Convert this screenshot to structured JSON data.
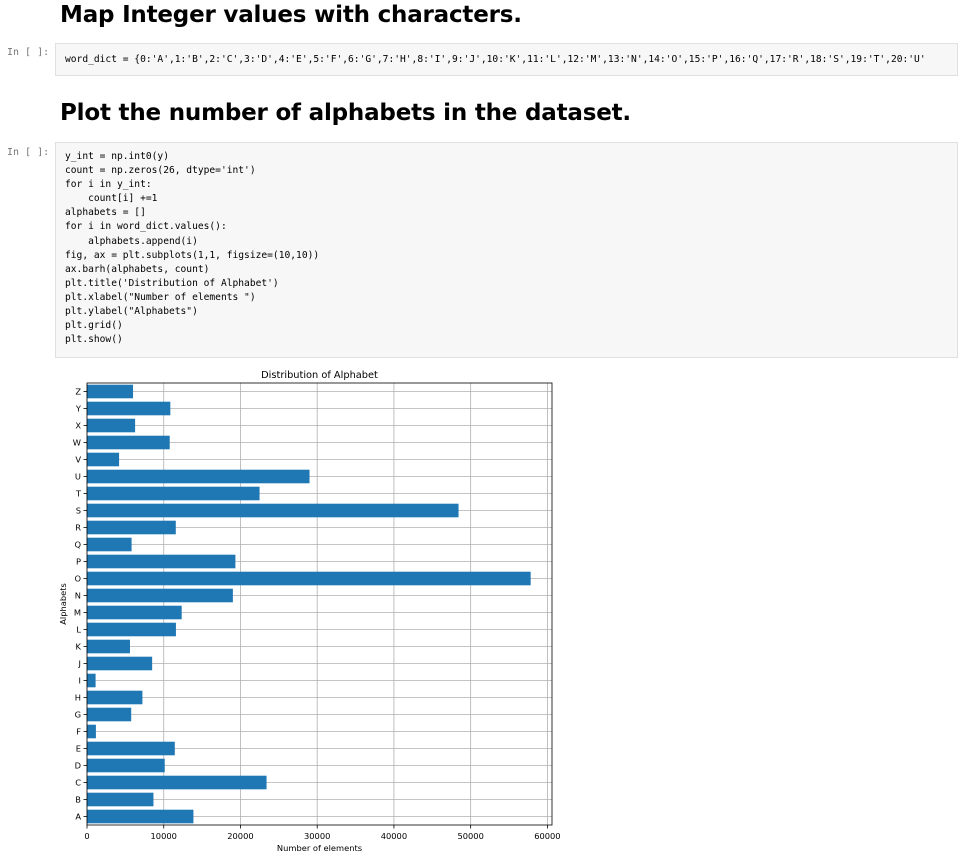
{
  "cells": [
    {
      "heading": "Map Integer values with characters.",
      "prompt": "In [ ]:",
      "code_lines": [
        "word_dict = {0:'A',1:'B',2:'C',3:'D',4:'E',5:'F',6:'G',7:'H',8:'I',9:'J',10:'K',11:'L',12:'M',13:'N',14:'O',15:'P',16:'Q',17:'R',18:'S',19:'T',20:'U'"
      ]
    },
    {
      "heading": "Plot the number of alphabets in the dataset.",
      "prompt": "In [ ]:",
      "code_lines": [
        "y_int = np.int0(y)",
        "count = np.zeros(26, dtype='int')",
        "for i in y_int:",
        "    count[i] +=1",
        "alphabets = []",
        "for i in word_dict.values():",
        "    alphabets.append(i)",
        "fig, ax = plt.subplots(1,1, figsize=(10,10))",
        "ax.barh(alphabets, count)",
        "plt.title('Distribution of Alphabet')",
        "plt.xlabel(\"Number of elements \")",
        "plt.ylabel(\"Alphabets\")",
        "plt.grid()",
        "plt.show()"
      ]
    }
  ],
  "colors": {
    "bar": "#1f77b4",
    "grid": "#b0b0b0",
    "cell_background": "#f7f7f7",
    "prompt": "#777777"
  },
  "chart_data": {
    "type": "bar",
    "orientation": "horizontal",
    "title": "Distribution of Alphabet",
    "xlabel": "Number of elements",
    "ylabel": "Alphabets",
    "categories": [
      "A",
      "B",
      "C",
      "D",
      "E",
      "F",
      "G",
      "H",
      "I",
      "J",
      "K",
      "L",
      "M",
      "N",
      "O",
      "P",
      "Q",
      "R",
      "S",
      "T",
      "U",
      "V",
      "W",
      "X",
      "Y",
      "Z"
    ],
    "values": [
      13870,
      8660,
      23400,
      10130,
      11440,
      1160,
      5760,
      7220,
      1120,
      8490,
      5600,
      11590,
      12340,
      19010,
      57820,
      19340,
      5810,
      11570,
      48420,
      22490,
      29000,
      4180,
      10780,
      6270,
      10860,
      6000
    ],
    "xlim": [
      0,
      60600
    ],
    "xticks": [
      0,
      10000,
      20000,
      30000,
      40000,
      50000,
      60000
    ],
    "grid": true,
    "legend": "none"
  }
}
